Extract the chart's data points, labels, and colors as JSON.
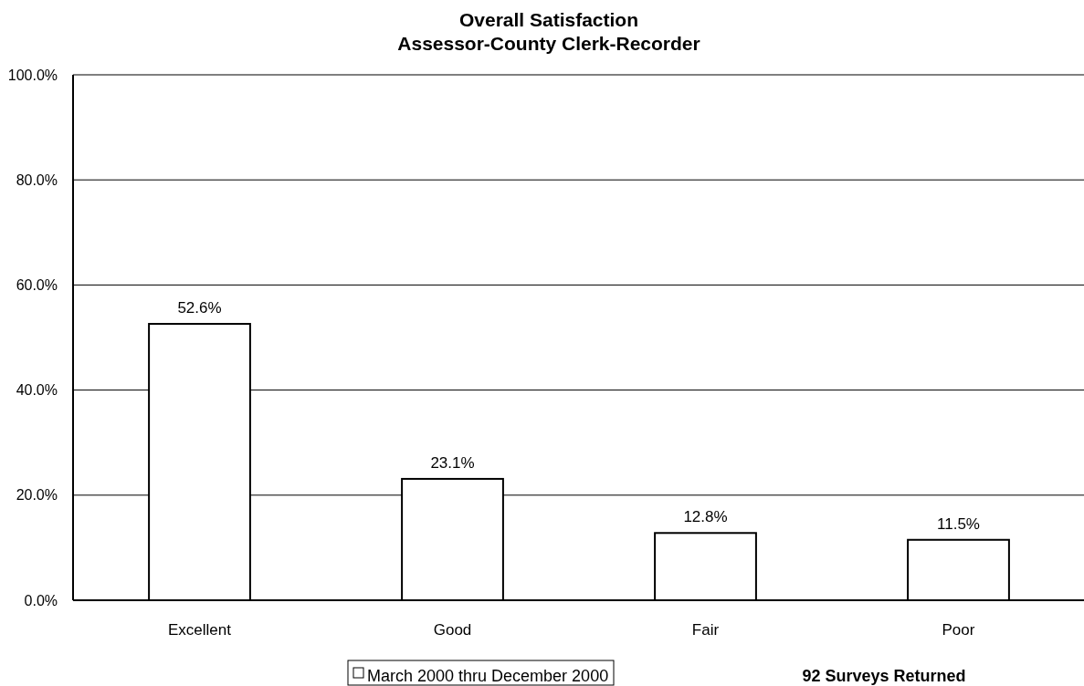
{
  "chart_data": {
    "type": "bar",
    "title": "Overall Satisfaction",
    "subtitle": "Assessor-County Clerk-Recorder",
    "categories": [
      "Excellent",
      "Good",
      "Fair",
      "Poor"
    ],
    "series": [
      {
        "name": "March 2000 thru December 2000",
        "color": "#ffffff",
        "values": [
          52.6,
          23.1,
          12.8,
          11.5
        ],
        "value_labels": [
          "52.6%",
          "23.1%",
          "12.8%",
          "11.5%"
        ]
      }
    ],
    "ylim": [
      0,
      100
    ],
    "yticks": [
      {
        "value": 0,
        "label": "0.0%"
      },
      {
        "value": 20,
        "label": "20.0%"
      },
      {
        "value": 40,
        "label": "40.0%"
      },
      {
        "value": 60,
        "label": "60.0%"
      },
      {
        "value": 80,
        "label": "80.0%"
      },
      {
        "value": 100,
        "label": "100.0%"
      }
    ],
    "grid": "y",
    "legend": "bottom",
    "annotations": [
      "92 Surveys Returned"
    ]
  }
}
